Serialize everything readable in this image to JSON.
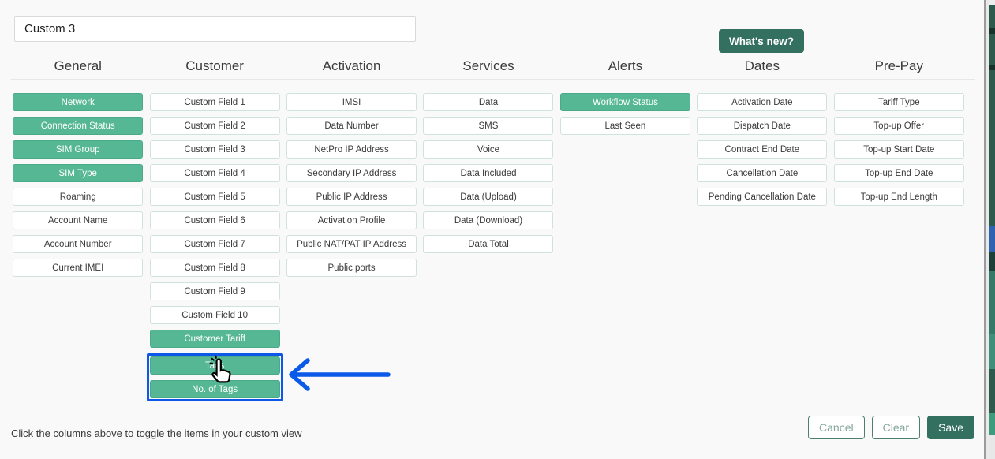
{
  "title_input": {
    "value": "Custom 3"
  },
  "whats_new": {
    "label": "What's new?"
  },
  "columns": [
    {
      "label": "General",
      "items": [
        {
          "label": "Network",
          "selected": true
        },
        {
          "label": "Connection Status",
          "selected": true
        },
        {
          "label": "SIM Group",
          "selected": true
        },
        {
          "label": "SIM Type",
          "selected": true
        },
        {
          "label": "Roaming",
          "selected": false
        },
        {
          "label": "Account Name",
          "selected": false
        },
        {
          "label": "Account Number",
          "selected": false
        },
        {
          "label": "Current IMEI",
          "selected": false
        }
      ]
    },
    {
      "label": "Customer",
      "items": [
        {
          "label": "Custom Field 1",
          "selected": false
        },
        {
          "label": "Custom Field 2",
          "selected": false
        },
        {
          "label": "Custom Field 3",
          "selected": false
        },
        {
          "label": "Custom Field 4",
          "selected": false
        },
        {
          "label": "Custom Field 5",
          "selected": false
        },
        {
          "label": "Custom Field 6",
          "selected": false
        },
        {
          "label": "Custom Field 7",
          "selected": false
        },
        {
          "label": "Custom Field 8",
          "selected": false
        },
        {
          "label": "Custom Field 9",
          "selected": false
        },
        {
          "label": "Custom Field 10",
          "selected": false
        },
        {
          "label": "Customer Tariff",
          "selected": true
        },
        {
          "label": "Tags",
          "selected": true,
          "highlighted": true
        },
        {
          "label": "No. of Tags",
          "selected": true,
          "highlighted": true
        }
      ]
    },
    {
      "label": "Activation",
      "items": [
        {
          "label": "IMSI",
          "selected": false
        },
        {
          "label": "Data Number",
          "selected": false
        },
        {
          "label": "NetPro IP Address",
          "selected": false
        },
        {
          "label": "Secondary IP Address",
          "selected": false
        },
        {
          "label": "Public IP Address",
          "selected": false
        },
        {
          "label": "Activation Profile",
          "selected": false
        },
        {
          "label": "Public NAT/PAT IP Address",
          "selected": false
        },
        {
          "label": "Public ports",
          "selected": false
        }
      ]
    },
    {
      "label": "Services",
      "items": [
        {
          "label": "Data",
          "selected": false
        },
        {
          "label": "SMS",
          "selected": false
        },
        {
          "label": "Voice",
          "selected": false
        },
        {
          "label": "Data Included",
          "selected": false
        },
        {
          "label": "Data (Upload)",
          "selected": false
        },
        {
          "label": "Data (Download)",
          "selected": false
        },
        {
          "label": "Data Total",
          "selected": false
        }
      ]
    },
    {
      "label": "Alerts",
      "items": [
        {
          "label": "Workflow Status",
          "selected": true
        },
        {
          "label": "Last Seen",
          "selected": false
        }
      ]
    },
    {
      "label": "Dates",
      "items": [
        {
          "label": "Activation Date",
          "selected": false
        },
        {
          "label": "Dispatch Date",
          "selected": false
        },
        {
          "label": "Contract End Date",
          "selected": false
        },
        {
          "label": "Cancellation Date",
          "selected": false
        },
        {
          "label": "Pending Cancellation Date",
          "selected": false
        }
      ]
    },
    {
      "label": "Pre-Pay",
      "items": [
        {
          "label": "Tariff Type",
          "selected": false
        },
        {
          "label": "Top-up Offer",
          "selected": false
        },
        {
          "label": "Top-up Start Date",
          "selected": false
        },
        {
          "label": "Top-up End Date",
          "selected": false
        },
        {
          "label": "Top-up End Length",
          "selected": false
        }
      ]
    }
  ],
  "annotation": {
    "highlight_target": "Tags / No. of Tags",
    "cursor": "hand-pointer"
  },
  "footer": {
    "hint": "Click the columns above to toggle the items in your custom view",
    "cancel_label": "Cancel",
    "clear_label": "Clear",
    "save_label": "Save"
  },
  "colors": {
    "selected_bg": "#56b795",
    "selected_border": "#49a988",
    "unselected_border": "#cfe2db",
    "dark_green": "#34705f",
    "highlight_blue": "#0d58e8",
    "arrow_blue": "#0c5be8"
  }
}
